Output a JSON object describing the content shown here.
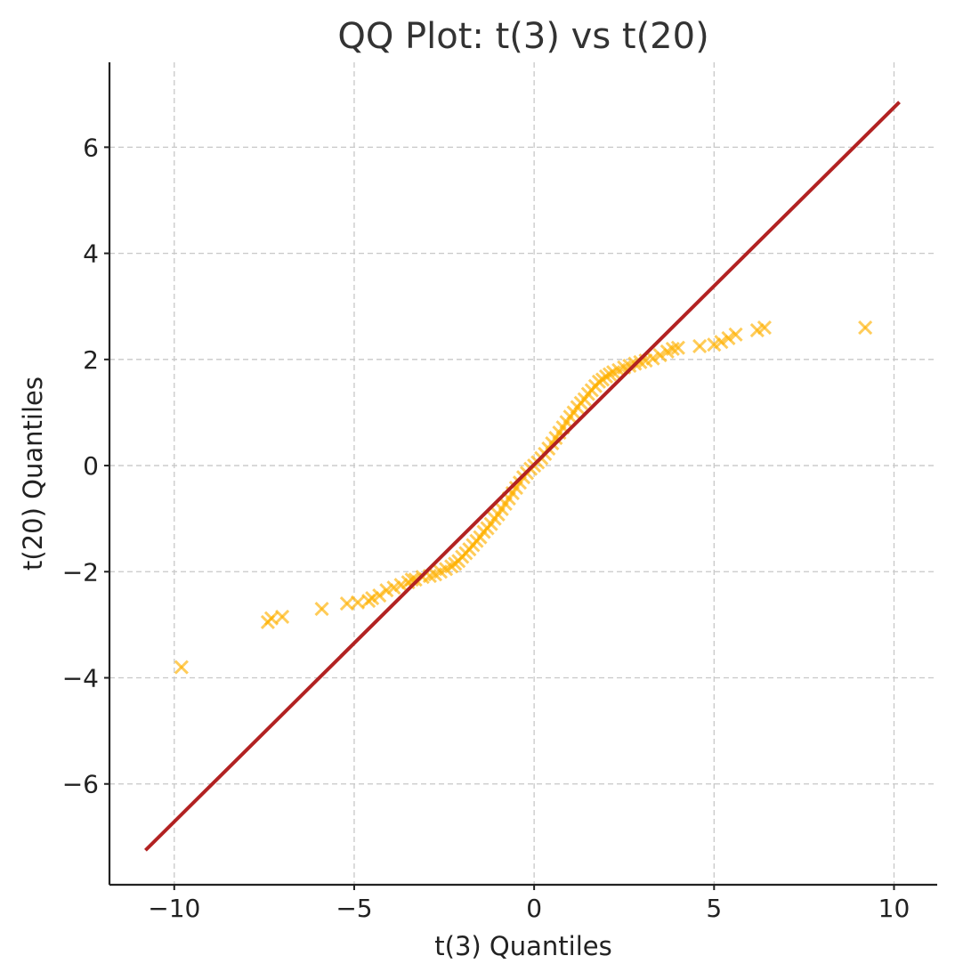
{
  "chart_data": {
    "type": "scatter",
    "title": "QQ Plot: t(3) vs t(20)",
    "xlabel": "t(3) Quantiles",
    "ylabel": "t(20) Quantiles",
    "xlim": [
      -11.8,
      11.2
    ],
    "ylim": [
      -7.9,
      7.6
    ],
    "xticks": [
      -10,
      -5,
      0,
      5,
      10
    ],
    "yticks": [
      -6,
      -4,
      -2,
      0,
      2,
      4,
      6
    ],
    "xtick_labels": [
      "−10",
      "−5",
      "0",
      "5",
      "10"
    ],
    "ytick_labels": [
      "−6",
      "−4",
      "−2",
      "0",
      "2",
      "4",
      "6"
    ],
    "grid": true,
    "marker": "x",
    "colors": {
      "points": "#ffb000",
      "reference_line": "#b22222"
    },
    "reference_line": {
      "x": [
        -10.8,
        10.15
      ],
      "y": [
        -7.25,
        6.85
      ]
    },
    "points": [
      [
        -9.8,
        -3.8
      ],
      [
        -7.4,
        -2.95
      ],
      [
        -7.3,
        -2.88
      ],
      [
        -7.0,
        -2.85
      ],
      [
        -5.9,
        -2.7
      ],
      [
        -5.2,
        -2.6
      ],
      [
        -4.9,
        -2.58
      ],
      [
        -4.6,
        -2.55
      ],
      [
        -4.5,
        -2.5
      ],
      [
        -4.3,
        -2.45
      ],
      [
        -4.1,
        -2.35
      ],
      [
        -3.9,
        -2.3
      ],
      [
        -3.7,
        -2.25
      ],
      [
        -3.5,
        -2.2
      ],
      [
        -3.4,
        -2.15
      ],
      [
        -3.3,
        -2.15
      ],
      [
        -3.1,
        -2.1
      ],
      [
        -2.9,
        -2.08
      ],
      [
        -2.75,
        -2.05
      ],
      [
        -2.6,
        -2.0
      ],
      [
        -2.45,
        -1.95
      ],
      [
        -2.3,
        -1.9
      ],
      [
        -2.2,
        -1.85
      ],
      [
        -2.1,
        -1.8
      ],
      [
        -2.0,
        -1.72
      ],
      [
        -1.9,
        -1.65
      ],
      [
        -1.8,
        -1.58
      ],
      [
        -1.7,
        -1.5
      ],
      [
        -1.6,
        -1.42
      ],
      [
        -1.5,
        -1.35
      ],
      [
        -1.4,
        -1.25
      ],
      [
        -1.3,
        -1.18
      ],
      [
        -1.2,
        -1.1
      ],
      [
        -1.1,
        -1.0
      ],
      [
        -1.0,
        -0.92
      ],
      [
        -0.9,
        -0.82
      ],
      [
        -0.8,
        -0.72
      ],
      [
        -0.7,
        -0.62
      ],
      [
        -0.6,
        -0.52
      ],
      [
        -0.5,
        -0.42
      ],
      [
        -0.4,
        -0.32
      ],
      [
        -0.3,
        -0.22
      ],
      [
        -0.2,
        -0.14
      ],
      [
        -0.1,
        -0.06
      ],
      [
        0.0,
        0.0
      ],
      [
        0.1,
        0.06
      ],
      [
        0.2,
        0.14
      ],
      [
        0.3,
        0.22
      ],
      [
        0.4,
        0.32
      ],
      [
        0.5,
        0.42
      ],
      [
        0.6,
        0.52
      ],
      [
        0.7,
        0.62
      ],
      [
        0.8,
        0.72
      ],
      [
        0.9,
        0.82
      ],
      [
        1.0,
        0.92
      ],
      [
        1.1,
        1.0
      ],
      [
        1.2,
        1.1
      ],
      [
        1.3,
        1.18
      ],
      [
        1.4,
        1.25
      ],
      [
        1.5,
        1.35
      ],
      [
        1.6,
        1.42
      ],
      [
        1.7,
        1.5
      ],
      [
        1.8,
        1.58
      ],
      [
        1.9,
        1.62
      ],
      [
        2.0,
        1.68
      ],
      [
        2.1,
        1.72
      ],
      [
        2.2,
        1.76
      ],
      [
        2.35,
        1.8
      ],
      [
        2.5,
        1.85
      ],
      [
        2.65,
        1.88
      ],
      [
        2.8,
        1.92
      ],
      [
        2.95,
        1.95
      ],
      [
        3.1,
        1.98
      ],
      [
        3.3,
        2.02
      ],
      [
        3.5,
        2.08
      ],
      [
        3.7,
        2.15
      ],
      [
        3.85,
        2.2
      ],
      [
        4.0,
        2.22
      ],
      [
        4.6,
        2.25
      ],
      [
        5.0,
        2.28
      ],
      [
        5.2,
        2.33
      ],
      [
        5.4,
        2.4
      ],
      [
        5.6,
        2.47
      ],
      [
        6.2,
        2.55
      ],
      [
        6.4,
        2.6
      ],
      [
        9.2,
        2.6
      ]
    ]
  }
}
